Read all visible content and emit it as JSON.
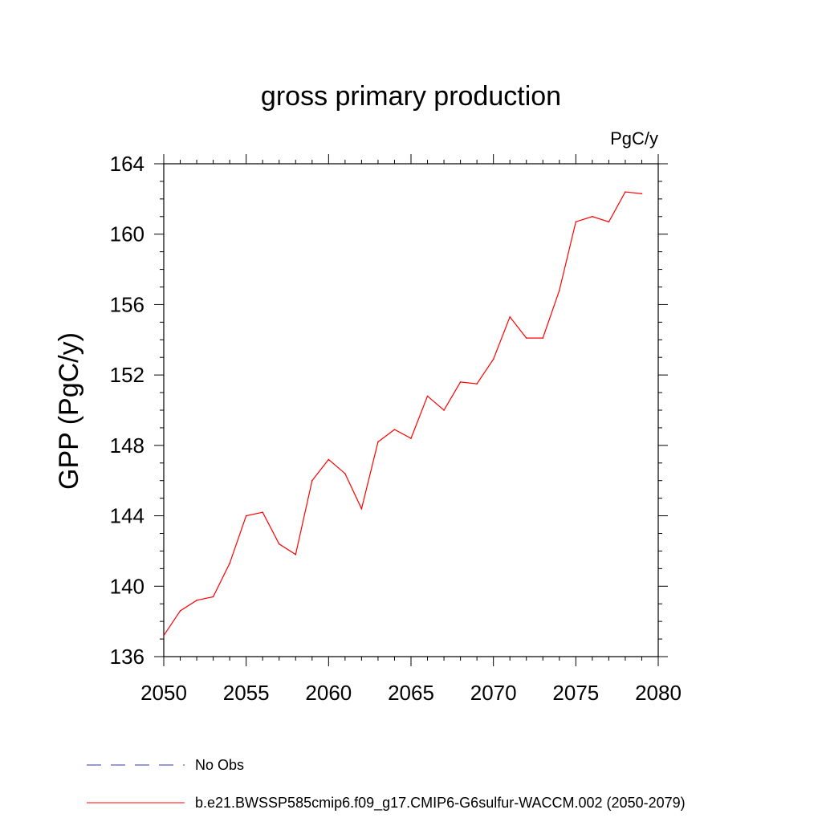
{
  "chart_data": {
    "type": "line",
    "title": "gross primary production",
    "units_label": "PgC/y",
    "xlabel": "",
    "ylabel": "GPP  (PgC/y)",
    "xlim": [
      2050,
      2080
    ],
    "ylim": [
      136,
      164
    ],
    "x_ticks": [
      2050,
      2055,
      2060,
      2065,
      2070,
      2075,
      2080
    ],
    "x_tick_labels": [
      "2050",
      "2055",
      "2060",
      "2065",
      "2070",
      "2075",
      "2080"
    ],
    "y_ticks": [
      136,
      140,
      144,
      148,
      152,
      156,
      160,
      164
    ],
    "y_tick_labels": [
      "136",
      "140",
      "144",
      "148",
      "152",
      "156",
      "160",
      "164"
    ],
    "grid": false,
    "legend_position": "bottom",
    "series": [
      {
        "name": "No Obs",
        "color": "#3a3aa8",
        "style": "dashed",
        "x": [],
        "values": []
      },
      {
        "name": "b.e21.BWSSP585cmip6.f09_g17.CMIP6-G6sulfur-WACCM.002 (2050-2079)",
        "color": "#ff0000",
        "style": "solid",
        "x": [
          2050,
          2051,
          2052,
          2053,
          2054,
          2055,
          2056,
          2057,
          2058,
          2059,
          2060,
          2061,
          2062,
          2063,
          2064,
          2065,
          2066,
          2067,
          2068,
          2069,
          2070,
          2071,
          2072,
          2073,
          2074,
          2075,
          2076,
          2077,
          2078,
          2079
        ],
        "values": [
          137.2,
          138.6,
          139.2,
          139.4,
          141.3,
          144.0,
          144.2,
          142.4,
          141.8,
          146.0,
          147.2,
          146.4,
          144.4,
          148.2,
          148.9,
          148.4,
          150.8,
          150.0,
          151.6,
          151.5,
          152.9,
          155.3,
          154.1,
          154.1,
          156.8,
          160.7,
          161.0,
          160.7,
          162.4,
          162.3
        ]
      }
    ]
  }
}
